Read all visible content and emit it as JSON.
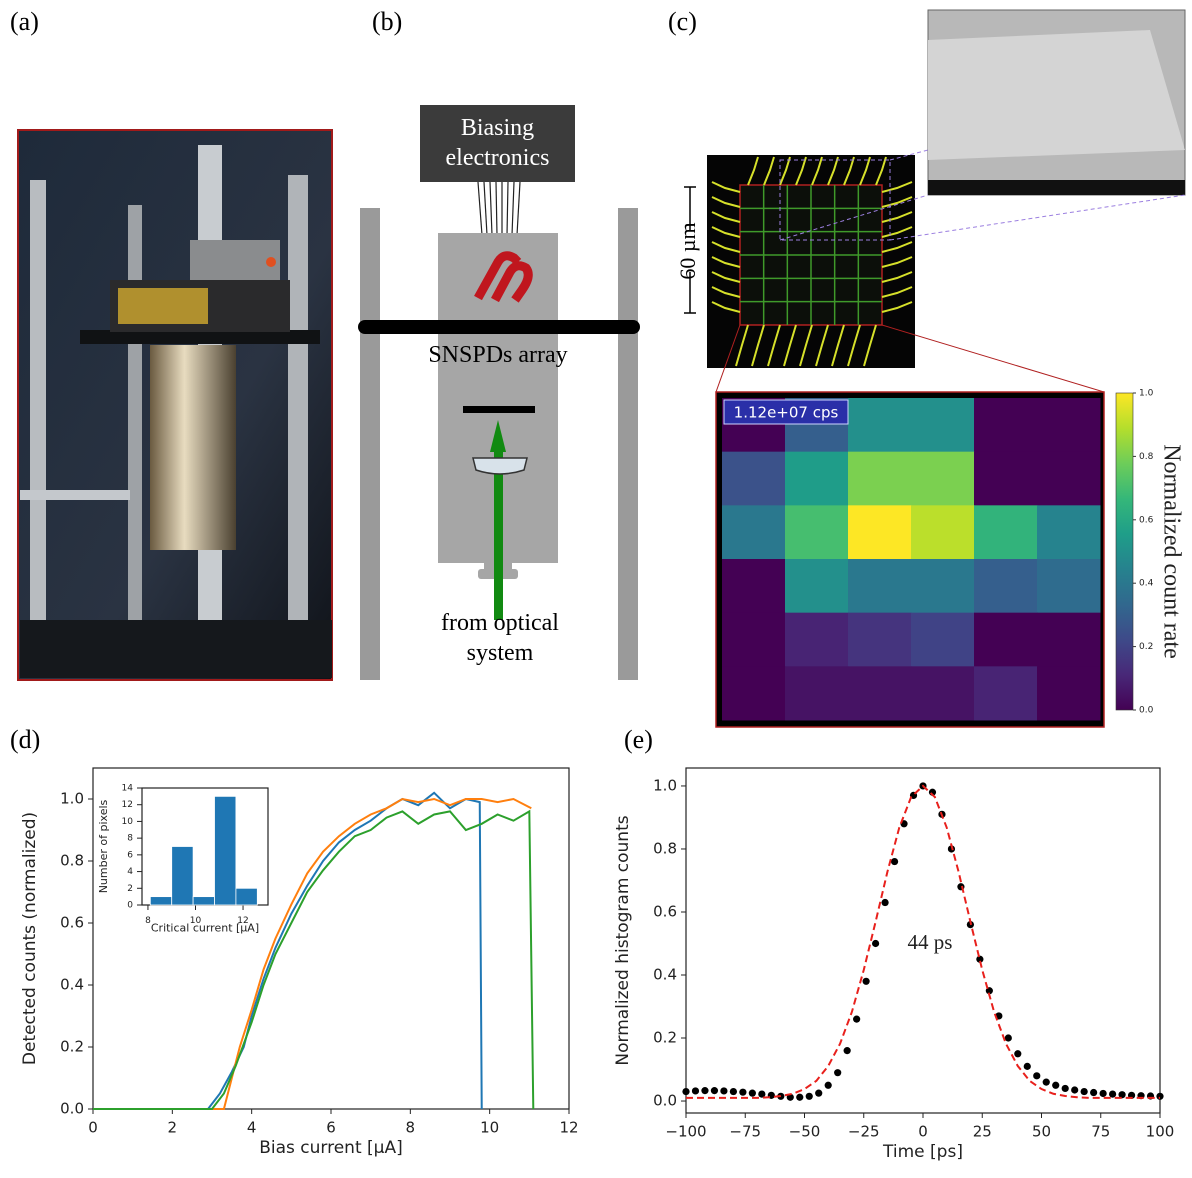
{
  "panel_labels": [
    "(a)",
    "(b)",
    "(c)",
    "(d)",
    "(e)"
  ],
  "diagram": {
    "electronics": "Biasing electronics",
    "detector": "SNSPDs array",
    "source": "from optical system"
  },
  "chip": {
    "scale": "60 µm"
  },
  "chart_data": [
    {
      "type": "heatmap",
      "colormap": "viridis",
      "values": [
        [
          0.0,
          0.3,
          0.5,
          0.5,
          0.0,
          0.0
        ],
        [
          0.25,
          0.55,
          0.8,
          0.8,
          0.0,
          0.0
        ],
        [
          0.4,
          0.7,
          1.0,
          0.9,
          0.65,
          0.45
        ],
        [
          0.0,
          0.5,
          0.4,
          0.4,
          0.3,
          0.35
        ],
        [
          0.0,
          0.1,
          0.15,
          0.2,
          0.0,
          0.0
        ],
        [
          0.0,
          0.05,
          0.05,
          0.05,
          0.1,
          0.0
        ]
      ],
      "zlim": [
        0,
        1
      ],
      "zticks": [
        {
          "value": 0,
          "label": "0.0"
        },
        {
          "value": 0.2,
          "label": "0.2"
        },
        {
          "value": 0.4,
          "label": "0.4"
        },
        {
          "value": 0.6,
          "label": "0.6"
        },
        {
          "value": 0.8,
          "label": "0.8"
        },
        {
          "value": 1,
          "label": "1.0"
        }
      ],
      "colorbar_label": "Normalized count rate",
      "annotation": "1.12e+07 cps"
    },
    {
      "type": "line",
      "xlabel": "Bias current [μA]",
      "ylabel": "Detected counts (normalized)",
      "xlim": [
        0,
        12
      ],
      "ylim": [
        0,
        1.1
      ],
      "xticks": [
        0,
        2,
        4,
        6,
        8,
        10,
        12
      ],
      "yticks": [
        {
          "value": 0,
          "label": "0.0"
        },
        {
          "value": 0.2,
          "label": "0.2"
        },
        {
          "value": 0.4,
          "label": "0.4"
        },
        {
          "value": 0.6,
          "label": "0.6"
        },
        {
          "value": 0.8,
          "label": "0.8"
        },
        {
          "value": 1,
          "label": "1.0"
        }
      ],
      "series": [
        {
          "color": "#1f77b4",
          "linestyle": "-",
          "x": [
            0,
            2.9,
            3.2,
            3.5,
            3.8,
            4,
            4.3,
            4.6,
            5,
            5.4,
            5.8,
            6.2,
            6.6,
            7,
            7.4,
            7.8,
            8.2,
            8.6,
            9,
            9.4,
            9.75,
            9.8
          ],
          "values": [
            0,
            0,
            0.05,
            0.12,
            0.2,
            0.3,
            0.42,
            0.52,
            0.63,
            0.72,
            0.8,
            0.86,
            0.9,
            0.93,
            0.97,
            1.0,
            0.98,
            1.02,
            0.97,
            1.0,
            0.99,
            0
          ]
        },
        {
          "color": "#ff7f0e",
          "linestyle": "-",
          "x": [
            0,
            3.3,
            3.5,
            3.7,
            4,
            4.3,
            4.6,
            5,
            5.4,
            5.8,
            6.2,
            6.6,
            7,
            7.4,
            7.8,
            8.2,
            8.6,
            9,
            9.4,
            9.8,
            10.2,
            10.6,
            11.05
          ],
          "values": [
            0,
            0,
            0.1,
            0.2,
            0.32,
            0.45,
            0.55,
            0.66,
            0.76,
            0.83,
            0.88,
            0.92,
            0.95,
            0.97,
            1.0,
            0.99,
            1.0,
            0.98,
            1.0,
            1.0,
            0.99,
            1.0,
            0.97
          ]
        },
        {
          "color": "#2ca02c",
          "linestyle": "-",
          "x": [
            0,
            3,
            3.3,
            3.6,
            4,
            4.3,
            4.6,
            5,
            5.4,
            5.8,
            6.2,
            6.6,
            7,
            7.4,
            7.8,
            8.2,
            8.6,
            9,
            9.4,
            9.8,
            10.2,
            10.6,
            11,
            11.1
          ],
          "values": [
            0,
            0,
            0.05,
            0.14,
            0.28,
            0.4,
            0.5,
            0.6,
            0.7,
            0.77,
            0.83,
            0.88,
            0.9,
            0.94,
            0.96,
            0.92,
            0.95,
            0.96,
            0.9,
            0.92,
            0.95,
            0.93,
            0.96,
            0
          ]
        }
      ]
    },
    {
      "type": "histogram",
      "xlabel": "Critical current [μA]",
      "ylabel": "Number of pixels",
      "bins": [
        8.1,
        9.0,
        9.9,
        10.8,
        11.7,
        12.6
      ],
      "values": [
        1,
        7,
        1,
        13,
        2
      ],
      "color": "#1f77b4",
      "xlim": [
        7.75,
        13.05
      ],
      "ylim": [
        0,
        14
      ],
      "xticks": [
        8,
        10,
        12
      ],
      "yticks": [
        0,
        2,
        4,
        6,
        8,
        10,
        12,
        14
      ]
    },
    {
      "type": "line",
      "xlabel": "Time [ps]",
      "ylabel": "Normalized histogram counts",
      "annotation": "44 ps",
      "xlim": [
        -100,
        100
      ],
      "ylim": [
        -0.038,
        1.057
      ],
      "xticks": [
        {
          "value": -100,
          "label": "−100"
        },
        {
          "value": -75,
          "label": "−75"
        },
        {
          "value": -50,
          "label": "−50"
        },
        {
          "value": -25,
          "label": "−25"
        },
        0,
        25,
        50,
        75,
        100
      ],
      "yticks": [
        {
          "value": 0,
          "label": "0.0"
        },
        {
          "value": 0.2,
          "label": "0.2"
        },
        {
          "value": 0.4,
          "label": "0.4"
        },
        {
          "value": 0.6,
          "label": "0.6"
        },
        {
          "value": 0.8,
          "label": "0.8"
        },
        {
          "value": 1,
          "label": "1.0"
        }
      ],
      "series": [
        {
          "color": "#000000",
          "linestyle": "none",
          "marker": "o",
          "x": [
            -100,
            -96,
            -92,
            -88,
            -84,
            -80,
            -76,
            -72,
            -68,
            -64,
            -60,
            -56,
            -52,
            -48,
            -44,
            -40,
            -36,
            -32,
            -28,
            -24,
            -20,
            -16,
            -12,
            -8,
            -4,
            0,
            4,
            8,
            12,
            16,
            20,
            24,
            28,
            32,
            36,
            40,
            44,
            48,
            52,
            56,
            60,
            64,
            68,
            72,
            76,
            80,
            84,
            88,
            92,
            96,
            100
          ],
          "values": [
            0.03,
            0.032,
            0.033,
            0.033,
            0.032,
            0.03,
            0.028,
            0.025,
            0.022,
            0.018,
            0.015,
            0.012,
            0.012,
            0.015,
            0.025,
            0.05,
            0.09,
            0.16,
            0.26,
            0.38,
            0.5,
            0.63,
            0.76,
            0.88,
            0.97,
            1.0,
            0.98,
            0.91,
            0.8,
            0.68,
            0.56,
            0.45,
            0.35,
            0.27,
            0.2,
            0.15,
            0.11,
            0.08,
            0.06,
            0.05,
            0.04,
            0.035,
            0.03,
            0.027,
            0.024,
            0.022,
            0.02,
            0.018,
            0.017,
            0.016,
            0.015
          ]
        },
        {
          "color": "#e8201c",
          "linestyle": "--",
          "x": [
            -100,
            -85,
            -70,
            -65,
            -60,
            -55,
            -50,
            -45,
            -40,
            -35,
            -30,
            -25,
            -20,
            -15,
            -10,
            -5,
            0,
            5,
            10,
            15,
            20,
            25,
            30,
            35,
            40,
            45,
            50,
            55,
            60,
            65,
            70,
            85,
            100
          ],
          "values": [
            0.01,
            0.01,
            0.01,
            0.012,
            0.016,
            0.023,
            0.038,
            0.064,
            0.111,
            0.182,
            0.283,
            0.416,
            0.569,
            0.728,
            0.868,
            0.965,
            1.0,
            0.965,
            0.868,
            0.728,
            0.569,
            0.416,
            0.283,
            0.182,
            0.111,
            0.064,
            0.038,
            0.023,
            0.016,
            0.012,
            0.01,
            0.01,
            0.01
          ]
        }
      ]
    }
  ]
}
